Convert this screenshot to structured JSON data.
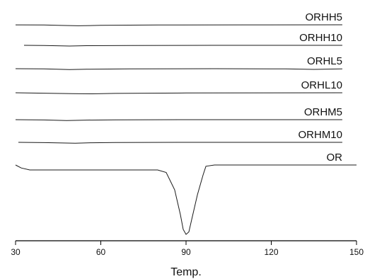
{
  "chart_data": {
    "type": "line",
    "xlabel": "Temp.",
    "ylabel": "",
    "xlim": [
      30,
      150
    ],
    "x_ticks": [
      30,
      60,
      90,
      120,
      150
    ],
    "legend": "labels placed at right end of each curve",
    "grid": false,
    "series": [
      {
        "name": "ORHH5",
        "x": [
          30,
          40,
          46,
          52,
          60,
          80,
          110,
          145
        ],
        "y": [
          0.05,
          0.1,
          0.3,
          0.45,
          0.25,
          0.1,
          0.05,
          0.0
        ]
      },
      {
        "name": "ORHH10",
        "x": [
          33,
          40,
          49,
          55,
          70,
          100,
          145
        ],
        "y": [
          0.0,
          0.1,
          0.35,
          0.15,
          0.05,
          0.0,
          0.0
        ]
      },
      {
        "name": "ORHL5",
        "x": [
          30,
          40,
          49,
          55,
          70,
          100,
          125,
          135,
          145
        ],
        "y": [
          0.0,
          0.1,
          0.4,
          0.25,
          0.1,
          0.0,
          0.1,
          0.35,
          0.05
        ]
      },
      {
        "name": "ORHL10",
        "x": [
          30,
          40,
          50,
          57,
          65,
          90,
          145
        ],
        "y": [
          0.0,
          0.2,
          0.4,
          0.5,
          0.3,
          0.1,
          0.0
        ]
      },
      {
        "name": "ORHM5",
        "x": [
          30,
          40,
          48,
          55,
          65,
          90,
          145
        ],
        "y": [
          0.0,
          0.15,
          0.4,
          0.2,
          0.1,
          0.0,
          0.0
        ]
      },
      {
        "name": "ORHM10",
        "x": [
          31,
          40,
          51,
          57,
          65,
          90,
          145
        ],
        "y": [
          0.0,
          0.15,
          0.4,
          0.2,
          0.1,
          0.0,
          0.0
        ]
      },
      {
        "name": "OR",
        "x": [
          30,
          32,
          35,
          40,
          80,
          83,
          86,
          88,
          89,
          90,
          91,
          92,
          94,
          96,
          97,
          100,
          150
        ],
        "y": [
          0.0,
          1.2,
          2.0,
          2.0,
          2.0,
          3.0,
          10.0,
          20.0,
          26.0,
          28.0,
          27.0,
          22.0,
          12.0,
          4.0,
          0.5,
          0.0,
          0.0
        ]
      }
    ]
  }
}
